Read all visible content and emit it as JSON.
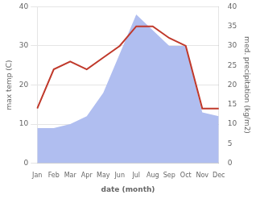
{
  "chart_data": {
    "type": "line",
    "categories": [
      "Jan",
      "Feb",
      "Mar",
      "Apr",
      "May",
      "Jun",
      "Jul",
      "Aug",
      "Sep",
      "Oct",
      "Nov",
      "Dec"
    ],
    "series": [
      {
        "type": "area",
        "color": "#b0bef0",
        "axis": "y2",
        "values": [
          9,
          9,
          10,
          12,
          18,
          28,
          38,
          34,
          30,
          30,
          13,
          12
        ]
      },
      {
        "type": "line",
        "color": "#c0392b",
        "values": [
          14,
          24,
          26,
          24,
          27,
          30,
          35,
          35,
          32,
          30,
          14,
          14
        ]
      }
    ],
    "xlabel": "date (month)",
    "ylabel": "max temp (C)",
    "y2label": "med. precipitation (kg/m2)",
    "ylim": [
      0,
      40
    ],
    "yticks": [
      0,
      10,
      20,
      30,
      40
    ],
    "y2lim": [
      0,
      40
    ],
    "y2ticks": [
      0,
      5,
      10,
      15,
      20,
      25,
      30,
      35,
      40
    ],
    "grid": true
  }
}
